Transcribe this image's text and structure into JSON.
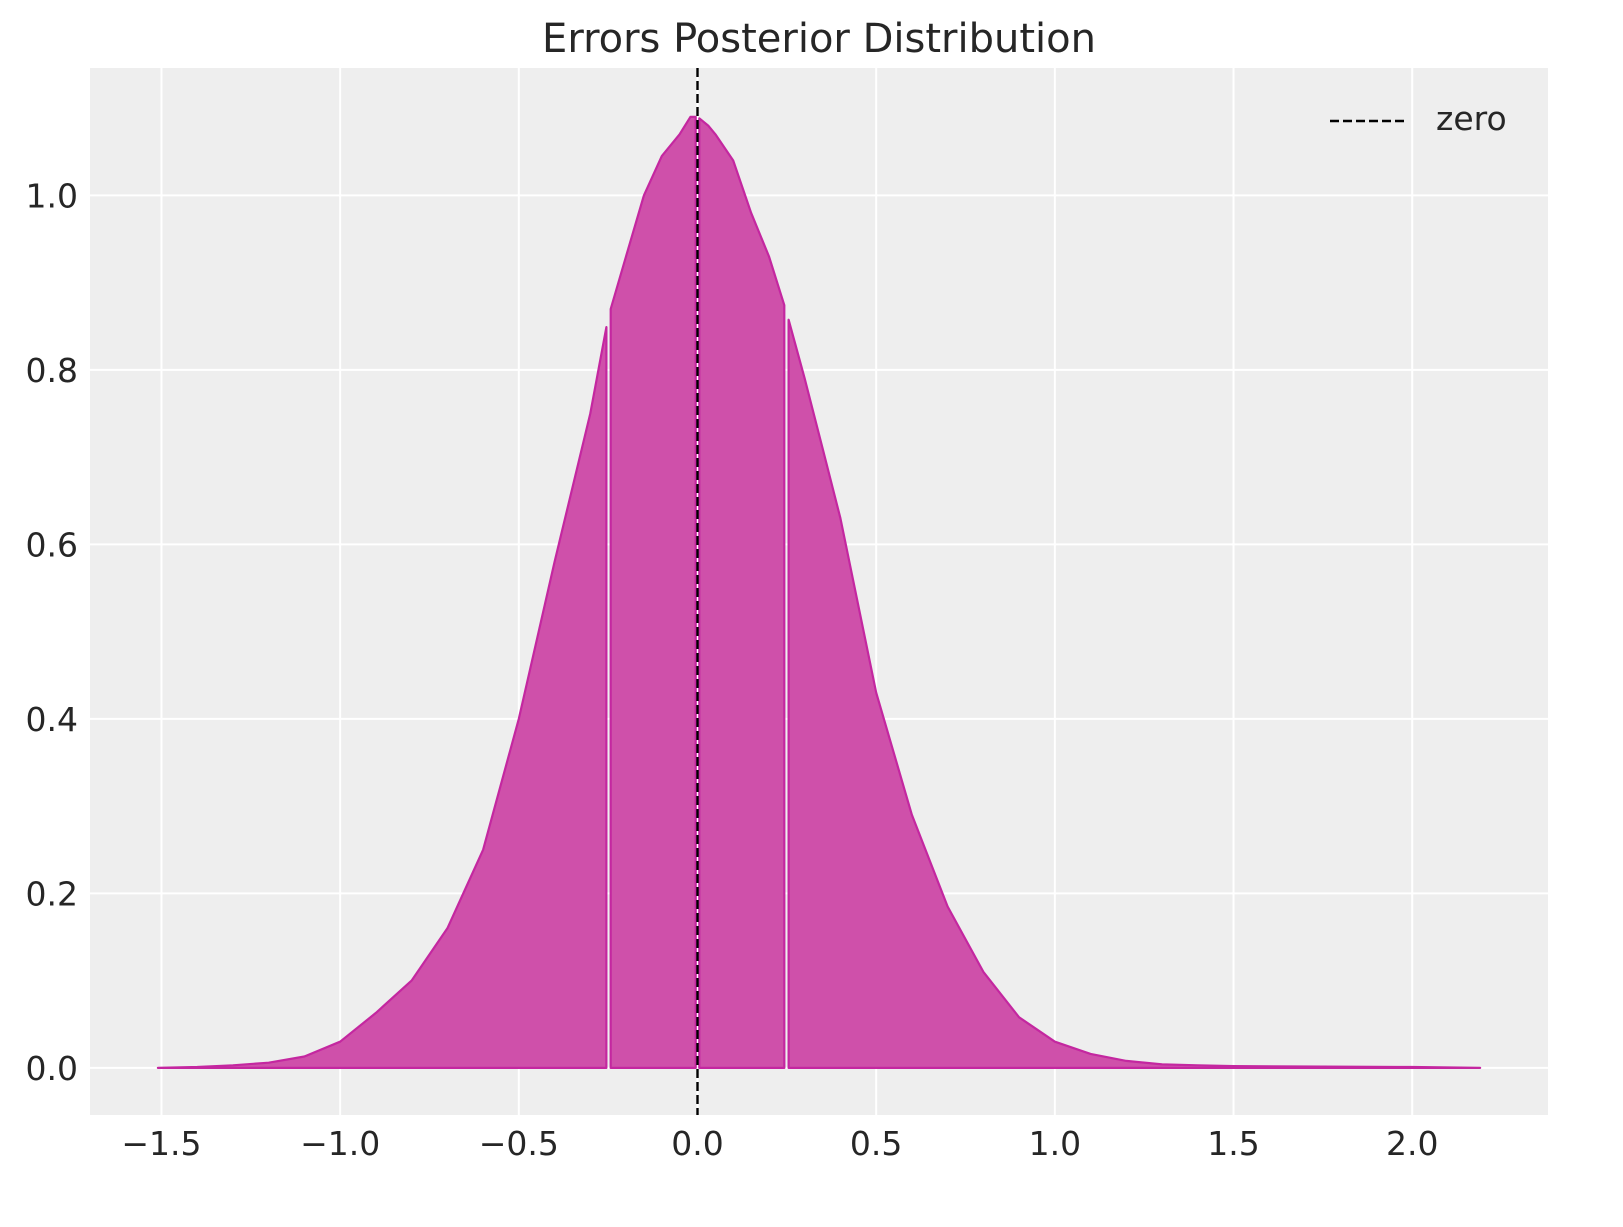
{
  "chart_data": {
    "type": "area",
    "title": "Errors Posterior Distribution",
    "xlabel": "",
    "ylabel": "",
    "xlim": [
      -1.7,
      2.38
    ],
    "ylim": [
      -0.054,
      1.146
    ],
    "xticks": [
      -1.5,
      -1.0,
      -0.5,
      0.0,
      0.5,
      1.0,
      1.5,
      2.0
    ],
    "xtick_labels": [
      "−1.5",
      "−1.0",
      "−0.5",
      "0.0",
      "0.5",
      "1.0",
      "1.5",
      "2.0"
    ],
    "yticks": [
      0.0,
      0.2,
      0.4,
      0.6,
      0.8,
      1.0
    ],
    "ytick_labels": [
      "0.0",
      "0.2",
      "0.4",
      "0.6",
      "0.8",
      "1.0"
    ],
    "grid": true,
    "background_color": "#eeeeee",
    "fill_color": "#cf50aa",
    "line_color": "#c427a0",
    "density": {
      "x": [
        -1.51,
        -1.4,
        -1.3,
        -1.2,
        -1.1,
        -1.0,
        -0.9,
        -0.8,
        -0.7,
        -0.6,
        -0.5,
        -0.4,
        -0.3,
        -0.25,
        -0.2,
        -0.15,
        -0.1,
        -0.05,
        -0.02,
        0.0,
        0.03,
        0.05,
        0.1,
        0.15,
        0.2,
        0.25,
        0.3,
        0.35,
        0.4,
        0.5,
        0.6,
        0.7,
        0.8,
        0.9,
        1.0,
        1.1,
        1.2,
        1.3,
        1.4,
        1.5,
        1.75,
        2.0,
        2.19
      ],
      "y": [
        0.0,
        0.001,
        0.003,
        0.006,
        0.013,
        0.03,
        0.063,
        0.1,
        0.16,
        0.25,
        0.4,
        0.58,
        0.75,
        0.86,
        0.93,
        1.0,
        1.045,
        1.07,
        1.09,
        1.09,
        1.08,
        1.07,
        1.04,
        0.98,
        0.93,
        0.865,
        0.79,
        0.71,
        0.63,
        0.43,
        0.29,
        0.185,
        0.11,
        0.058,
        0.03,
        0.016,
        0.008,
        0.004,
        0.003,
        0.002,
        0.0015,
        0.001,
        0.0
      ]
    },
    "segments": [
      [
        -1.51,
        -0.255
      ],
      [
        -0.243,
        -0.005
      ],
      [
        0.005,
        0.243
      ],
      [
        0.255,
        2.19
      ]
    ],
    "reference_line": {
      "x": 0.0,
      "style": "dashed",
      "color": "#000000",
      "label": "zero"
    },
    "legend": {
      "entries": [
        "zero"
      ],
      "placement": "top-right"
    }
  }
}
